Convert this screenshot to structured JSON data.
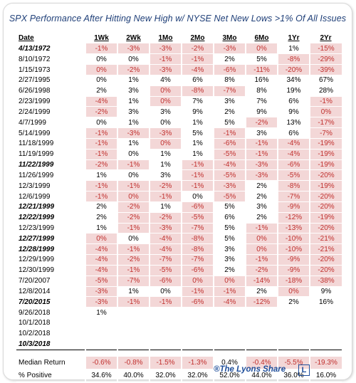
{
  "title": "SPX Performance After Hitting New High w/ NYSE Net New Lows >1% Of All Issues",
  "headers": [
    "Date",
    "1Wk",
    "2Wk",
    "1Mo",
    "2Mo",
    "3Mo",
    "6Mo",
    "1Yr",
    "2Yr"
  ],
  "rows": [
    {
      "date": "4/13/1972",
      "bold": true,
      "values": [
        "-1%",
        "-3%",
        "-3%",
        "-2%",
        "-3%",
        "0%",
        "1%",
        "-15%"
      ],
      "neg": [
        1,
        1,
        1,
        1,
        1,
        1,
        0,
        1
      ]
    },
    {
      "date": "8/10/1972",
      "bold": false,
      "values": [
        "0%",
        "0%",
        "-1%",
        "-1%",
        "2%",
        "5%",
        "-8%",
        "-29%"
      ],
      "neg": [
        0,
        0,
        1,
        1,
        0,
        0,
        1,
        1
      ]
    },
    {
      "date": "1/15/1973",
      "bold": false,
      "values": [
        "0%",
        "-2%",
        "-3%",
        "-4%",
        "-6%",
        "-11%",
        "-20%",
        "-39%"
      ],
      "neg": [
        1,
        1,
        1,
        1,
        1,
        1,
        1,
        1
      ]
    },
    {
      "date": "2/27/1995",
      "bold": false,
      "values": [
        "0%",
        "1%",
        "4%",
        "6%",
        "8%",
        "16%",
        "34%",
        "67%"
      ],
      "neg": [
        0,
        0,
        0,
        0,
        0,
        0,
        0,
        0
      ]
    },
    {
      "date": "6/26/1998",
      "bold": false,
      "values": [
        "2%",
        "3%",
        "0%",
        "-8%",
        "-7%",
        "8%",
        "19%",
        "28%"
      ],
      "neg": [
        0,
        0,
        1,
        1,
        1,
        0,
        0,
        0
      ]
    },
    {
      "date": "2/23/1999",
      "bold": false,
      "values": [
        "-4%",
        "1%",
        "0%",
        "7%",
        "3%",
        "7%",
        "6%",
        "-1%"
      ],
      "neg": [
        1,
        0,
        1,
        0,
        0,
        0,
        0,
        1
      ]
    },
    {
      "date": "2/24/1999",
      "bold": false,
      "values": [
        "-2%",
        "3%",
        "3%",
        "9%",
        "2%",
        "9%",
        "9%",
        "0%"
      ],
      "neg": [
        1,
        0,
        0,
        0,
        0,
        0,
        0,
        1
      ]
    },
    {
      "date": "4/7/1999",
      "bold": false,
      "values": [
        "0%",
        "1%",
        "0%",
        "1%",
        "5%",
        "-2%",
        "13%",
        "-17%"
      ],
      "neg": [
        0,
        0,
        0,
        0,
        0,
        1,
        0,
        1
      ]
    },
    {
      "date": "5/14/1999",
      "bold": false,
      "values": [
        "-1%",
        "-3%",
        "-3%",
        "5%",
        "-1%",
        "3%",
        "6%",
        "-7%"
      ],
      "neg": [
        1,
        1,
        1,
        0,
        1,
        0,
        0,
        1
      ]
    },
    {
      "date": "11/18/1999",
      "bold": false,
      "values": [
        "-1%",
        "1%",
        "0%",
        "1%",
        "-6%",
        "-1%",
        "-4%",
        "-19%"
      ],
      "neg": [
        1,
        0,
        1,
        0,
        1,
        1,
        1,
        1
      ]
    },
    {
      "date": "11/19/1999",
      "bold": false,
      "values": [
        "-1%",
        "0%",
        "1%",
        "1%",
        "-5%",
        "-1%",
        "-4%",
        "-19%"
      ],
      "neg": [
        1,
        0,
        0,
        0,
        1,
        1,
        1,
        1
      ]
    },
    {
      "date": "11/22/1999",
      "bold": true,
      "values": [
        "-2%",
        "-1%",
        "1%",
        "-1%",
        "-4%",
        "-3%",
        "-6%",
        "-19%"
      ],
      "neg": [
        1,
        1,
        0,
        1,
        1,
        1,
        1,
        1
      ]
    },
    {
      "date": "11/26/1999",
      "bold": false,
      "values": [
        "1%",
        "0%",
        "3%",
        "-1%",
        "-5%",
        "-3%",
        "-5%",
        "-20%"
      ],
      "neg": [
        0,
        0,
        0,
        1,
        1,
        1,
        1,
        1
      ]
    },
    {
      "date": "12/3/1999",
      "bold": false,
      "values": [
        "-1%",
        "-1%",
        "-2%",
        "-1%",
        "-3%",
        "2%",
        "-8%",
        "-19%"
      ],
      "neg": [
        1,
        1,
        1,
        1,
        1,
        0,
        1,
        1
      ]
    },
    {
      "date": "12/6/1999",
      "bold": false,
      "values": [
        "-1%",
        "0%",
        "-1%",
        "0%",
        "-5%",
        "2%",
        "-7%",
        "-20%"
      ],
      "neg": [
        1,
        1,
        1,
        0,
        1,
        0,
        1,
        1
      ]
    },
    {
      "date": "12/21/1999",
      "bold": true,
      "values": [
        "2%",
        "-2%",
        "1%",
        "-6%",
        "5%",
        "3%",
        "-9%",
        "-20%"
      ],
      "neg": [
        0,
        1,
        0,
        1,
        0,
        0,
        1,
        1
      ]
    },
    {
      "date": "12/22/1999",
      "bold": true,
      "values": [
        "2%",
        "-2%",
        "-2%",
        "-5%",
        "6%",
        "2%",
        "-12%",
        "-19%"
      ],
      "neg": [
        0,
        1,
        1,
        1,
        0,
        0,
        1,
        1
      ]
    },
    {
      "date": "12/23/1999",
      "bold": false,
      "values": [
        "1%",
        "-1%",
        "-3%",
        "-7%",
        "5%",
        "-1%",
        "-13%",
        "-20%"
      ],
      "neg": [
        0,
        1,
        1,
        1,
        0,
        1,
        1,
        1
      ]
    },
    {
      "date": "12/27/1999",
      "bold": true,
      "values": [
        "0%",
        "0%",
        "-4%",
        "-8%",
        "5%",
        "0%",
        "-10%",
        "-21%"
      ],
      "neg": [
        1,
        0,
        1,
        1,
        0,
        1,
        1,
        1
      ]
    },
    {
      "date": "12/28/1999",
      "bold": true,
      "values": [
        "-4%",
        "-1%",
        "-4%",
        "-8%",
        "3%",
        "0%",
        "-10%",
        "-21%"
      ],
      "neg": [
        1,
        1,
        1,
        1,
        0,
        1,
        1,
        1
      ]
    },
    {
      "date": "12/29/1999",
      "bold": false,
      "values": [
        "-4%",
        "-2%",
        "-7%",
        "-7%",
        "3%",
        "-1%",
        "-9%",
        "-20%"
      ],
      "neg": [
        1,
        1,
        1,
        1,
        0,
        1,
        1,
        1
      ]
    },
    {
      "date": "12/30/1999",
      "bold": false,
      "values": [
        "-4%",
        "-1%",
        "-5%",
        "-6%",
        "2%",
        "-2%",
        "-9%",
        "-20%"
      ],
      "neg": [
        1,
        1,
        1,
        1,
        0,
        1,
        1,
        1
      ]
    },
    {
      "date": "7/20/2007",
      "bold": false,
      "values": [
        "-5%",
        "-7%",
        "-6%",
        "0%",
        "0%",
        "-14%",
        "-18%",
        "-38%"
      ],
      "neg": [
        1,
        1,
        1,
        1,
        1,
        1,
        1,
        1
      ]
    },
    {
      "date": "12/8/2014",
      "bold": false,
      "values": [
        "-3%",
        "1%",
        "0%",
        "-1%",
        "-1%",
        "2%",
        "0%",
        "9%"
      ],
      "neg": [
        1,
        0,
        0,
        1,
        1,
        0,
        1,
        0
      ]
    },
    {
      "date": "7/20/2015",
      "bold": true,
      "values": [
        "-3%",
        "-1%",
        "-1%",
        "-6%",
        "-4%",
        "-12%",
        "2%",
        "16%"
      ],
      "neg": [
        1,
        1,
        1,
        1,
        1,
        1,
        0,
        0
      ]
    },
    {
      "date": "9/26/2018",
      "bold": false,
      "values": [
        "1%",
        "",
        "",
        "",
        "",
        "",
        "",
        ""
      ],
      "neg": [
        0,
        0,
        0,
        0,
        0,
        0,
        0,
        0
      ]
    },
    {
      "date": "10/1/2018",
      "bold": false,
      "values": [
        "",
        "",
        "",
        "",
        "",
        "",
        "",
        ""
      ],
      "neg": [
        0,
        0,
        0,
        0,
        0,
        0,
        0,
        0
      ]
    },
    {
      "date": "10/2/2018",
      "bold": false,
      "values": [
        "",
        "",
        "",
        "",
        "",
        "",
        "",
        ""
      ],
      "neg": [
        0,
        0,
        0,
        0,
        0,
        0,
        0,
        0
      ]
    },
    {
      "date": "10/3/2018",
      "bold": true,
      "values": [
        "",
        "",
        "",
        "",
        "",
        "",
        "",
        ""
      ],
      "neg": [
        0,
        0,
        0,
        0,
        0,
        0,
        0,
        0
      ]
    }
  ],
  "summary": [
    {
      "label": "Median Return",
      "values": [
        "-0.6%",
        "-0.8%",
        "-1.5%",
        "-1.3%",
        "0.4%",
        "-0.4%",
        "-5.5%",
        "-19.3%"
      ],
      "neg": [
        1,
        1,
        1,
        1,
        0,
        1,
        1,
        1
      ]
    },
    {
      "label": "% Positive",
      "values": [
        "34.6%",
        "40.0%",
        "32.0%",
        "32.0%",
        "52.0%",
        "44.0%",
        "36.0%",
        "16.0%"
      ],
      "neg": [
        0,
        0,
        0,
        0,
        0,
        0,
        0,
        0
      ]
    }
  ],
  "footer": "®The Lyons Share",
  "logo_letter": "L",
  "colors": {
    "neg_bg": "#f3d7d7",
    "neg_text": "#c0302e",
    "title": "#1f3f78",
    "footer": "#1f4e9a"
  }
}
